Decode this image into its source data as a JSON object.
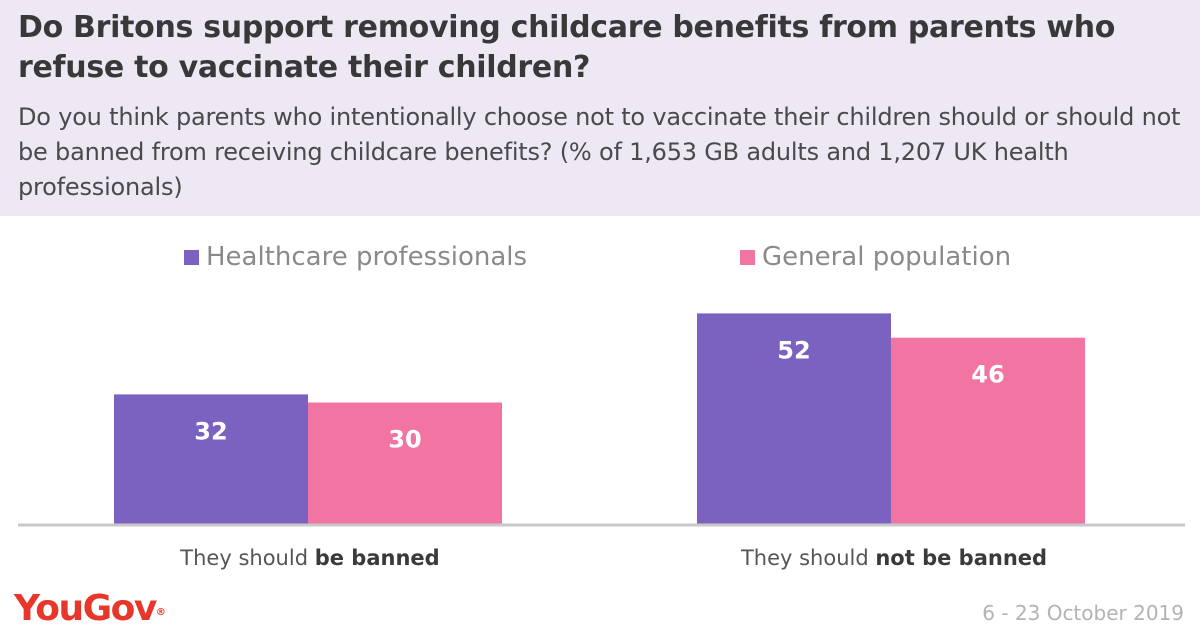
{
  "header": {
    "title": "Do Britons support removing childcare benefits from parents who refuse to vaccinate their children?",
    "subtitle": "Do you think parents who intentionally choose not to vaccinate their children should or should not be banned from receiving childcare benefits? (% of 1,653 GB adults and 1,207 UK health professionals)"
  },
  "footer": {
    "logo": "YouGov",
    "logo_mark": "®",
    "date": "6 - 23 October 2019"
  },
  "chart_data": {
    "type": "bar",
    "title": "Do Britons support removing childcare benefits from parents who refuse to vaccinate their children?",
    "subtitle": "Do you think parents who intentionally choose not to vaccinate their children should or should not be banned from receiving childcare benefits? (% of 1,653 GB adults and 1,207 UK health professionals)",
    "categories": [
      "They should be banned",
      "They should not be banned"
    ],
    "category_parts": [
      {
        "plain": "They should ",
        "bold": "be banned"
      },
      {
        "plain": "They should ",
        "bold": "not be banned"
      }
    ],
    "series": [
      {
        "name": "Healthcare professionals",
        "color": "#7b62c0",
        "values": [
          32,
          52
        ]
      },
      {
        "name": "General population",
        "color": "#f274a2",
        "values": [
          30,
          46
        ]
      }
    ],
    "ylim": [
      0,
      60
    ],
    "grid": false,
    "legend_position": "top",
    "data_labels": true
  }
}
